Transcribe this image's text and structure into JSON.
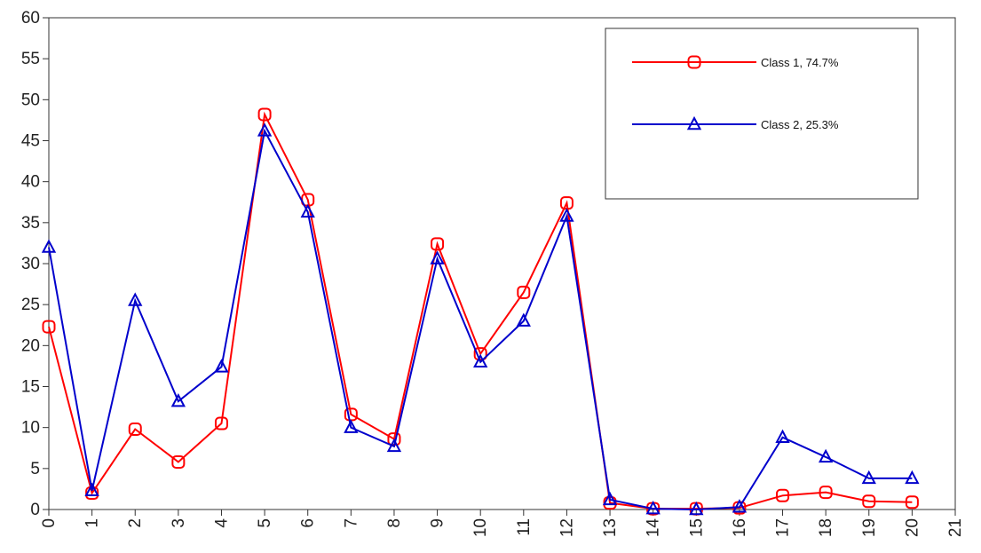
{
  "chart_data": {
    "type": "line",
    "title": "",
    "xlabel": "",
    "ylabel": "",
    "x": [
      0,
      1,
      2,
      3,
      4,
      5,
      6,
      7,
      8,
      9,
      10,
      11,
      12,
      13,
      14,
      15,
      16,
      17,
      18,
      19,
      20
    ],
    "xticks": [
      0,
      1,
      2,
      3,
      4,
      5,
      6,
      7,
      8,
      9,
      10,
      11,
      12,
      13,
      14,
      15,
      16,
      17,
      18,
      19,
      20,
      21
    ],
    "xlim": [
      0,
      21
    ],
    "ylim": [
      0,
      60
    ],
    "yticks": [
      0,
      5,
      10,
      15,
      20,
      25,
      30,
      35,
      40,
      45,
      50,
      55,
      60
    ],
    "grid": false,
    "legend_position": "top-right",
    "series": [
      {
        "name": "Class 1, 74.7%",
        "color": "#ff0000",
        "marker": "square",
        "values": [
          22.3,
          2.0,
          9.8,
          5.8,
          10.5,
          48.2,
          37.8,
          11.6,
          8.6,
          32.4,
          19.0,
          26.5,
          37.4,
          0.8,
          0.1,
          0.1,
          0.2,
          1.7,
          2.1,
          1.0,
          0.9
        ]
      },
      {
        "name": "Class 2, 25.3%",
        "color": "#0000cc",
        "marker": "triangle",
        "values": [
          32.0,
          2.3,
          25.5,
          13.2,
          17.4,
          46.2,
          36.3,
          10.0,
          7.7,
          30.6,
          18.0,
          23.0,
          35.8,
          1.2,
          0.1,
          0.0,
          0.3,
          8.8,
          6.4,
          3.8,
          3.8
        ]
      }
    ]
  }
}
